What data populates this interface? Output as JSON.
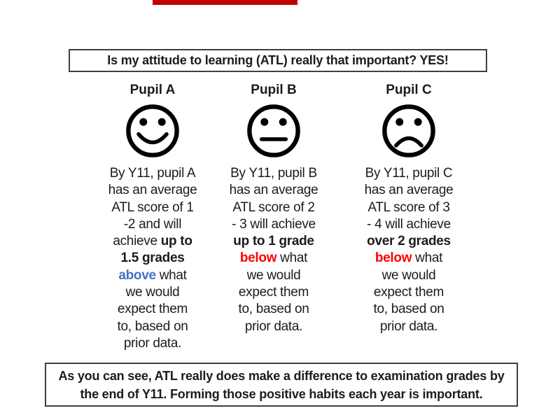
{
  "slide": {
    "top_banner_color": "#c00000",
    "background": "#ffffff"
  },
  "colors": {
    "emphasis_blue": "#4472c4",
    "emphasis_red": "#ff0000",
    "border": "#404040",
    "text": "#1c1c1c"
  },
  "title_box": {
    "text": "Is my attitude to learning (ATL) really that important? YES!"
  },
  "pupils": [
    {
      "name": "Pupil A",
      "mood": "happy",
      "icon": "happy-face-icon",
      "lines": [
        [
          {
            "t": "By Y11, pupil A"
          }
        ],
        [
          {
            "t": "has an average"
          }
        ],
        [
          {
            "t": "ATL score of 1"
          }
        ],
        [
          {
            "t": "-2 and will"
          }
        ],
        [
          {
            "t": "achieve "
          },
          {
            "t": "up to",
            "b": true
          }
        ],
        [
          {
            "t": "1.5 grades",
            "b": true
          }
        ],
        [
          {
            "t": "above",
            "b": true,
            "c": "#4472c4"
          },
          {
            "t": " what"
          }
        ],
        [
          {
            "t": "we would"
          }
        ],
        [
          {
            "t": "expect them"
          }
        ],
        [
          {
            "t": "to, based on"
          }
        ],
        [
          {
            "t": "prior data."
          }
        ]
      ]
    },
    {
      "name": "Pupil B",
      "mood": "neutral",
      "icon": "neutral-face-icon",
      "lines": [
        [
          {
            "t": "By Y11, pupil B"
          }
        ],
        [
          {
            "t": "has an average"
          }
        ],
        [
          {
            "t": "ATL score of 2"
          }
        ],
        [
          {
            "t": "- 3 will achieve"
          }
        ],
        [
          {
            "t": "up to 1 grade",
            "b": true
          }
        ],
        [
          {
            "t": "below",
            "b": true,
            "c": "#ff0000"
          },
          {
            "t": " what"
          }
        ],
        [
          {
            "t": "we would"
          }
        ],
        [
          {
            "t": "expect them"
          }
        ],
        [
          {
            "t": "to, based on"
          }
        ],
        [
          {
            "t": "prior data."
          }
        ]
      ]
    },
    {
      "name": "Pupil C",
      "mood": "sad",
      "icon": "sad-face-icon",
      "lines": [
        [
          {
            "t": "By Y11, pupil C"
          }
        ],
        [
          {
            "t": "has an average"
          }
        ],
        [
          {
            "t": "ATL score of 3"
          }
        ],
        [
          {
            "t": "- 4 will achieve"
          }
        ],
        [
          {
            "t": "over 2 grades",
            "b": true
          }
        ],
        [
          {
            "t": "below",
            "b": true,
            "c": "#ff0000"
          },
          {
            "t": " what"
          }
        ],
        [
          {
            "t": "we would"
          }
        ],
        [
          {
            "t": "expect them"
          }
        ],
        [
          {
            "t": "to, based on"
          }
        ],
        [
          {
            "t": "prior data."
          }
        ]
      ]
    }
  ],
  "footer_box": {
    "lines": [
      "As you can see, ATL really does make a difference to examination grades by",
      "the end of Y11. Forming those positive habits each year is important."
    ]
  }
}
